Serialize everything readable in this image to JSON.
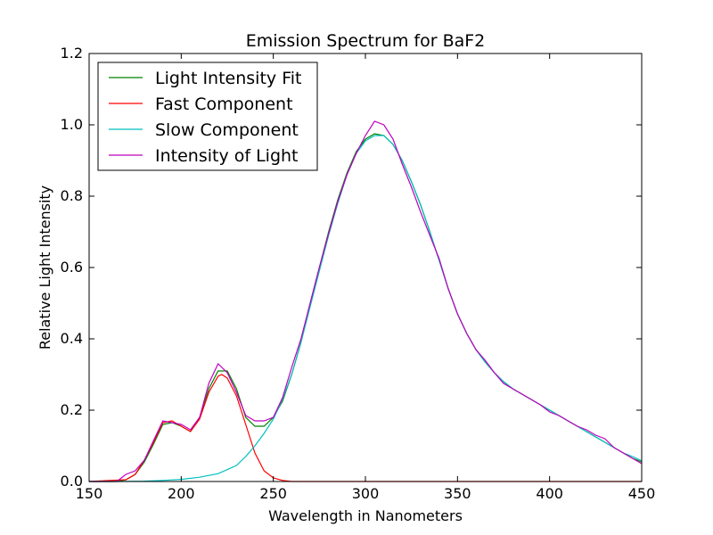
{
  "chart_data": {
    "type": "line",
    "title": "Emission Spectrum for BaF2",
    "xlabel": "Wavelength in Nanometers",
    "ylabel": "Relative Light Intensity",
    "xlim": [
      150,
      450
    ],
    "ylim": [
      0,
      1.2
    ],
    "xticks": [
      "150",
      "200",
      "250",
      "300",
      "350",
      "400",
      "450"
    ],
    "yticks": [
      "0.0",
      "0.2",
      "0.4",
      "0.6",
      "0.8",
      "1.0",
      "1.2"
    ],
    "grid": false,
    "legend_position": "top-left",
    "series": [
      {
        "name": "Light Intensity Fit",
        "color": "#008000",
        "points": [
          [
            150,
            0
          ],
          [
            165,
            0
          ],
          [
            170,
            0.005
          ],
          [
            175,
            0.02
          ],
          [
            180,
            0.055
          ],
          [
            185,
            0.105
          ],
          [
            190,
            0.16
          ],
          [
            195,
            0.165
          ],
          [
            200,
            0.155
          ],
          [
            205,
            0.14
          ],
          [
            210,
            0.18
          ],
          [
            215,
            0.26
          ],
          [
            220,
            0.31
          ],
          [
            225,
            0.31
          ],
          [
            230,
            0.26
          ],
          [
            235,
            0.18
          ],
          [
            240,
            0.155
          ],
          [
            245,
            0.155
          ],
          [
            250,
            0.18
          ],
          [
            255,
            0.225
          ],
          [
            260,
            0.3
          ],
          [
            265,
            0.39
          ],
          [
            270,
            0.5
          ],
          [
            275,
            0.6
          ],
          [
            280,
            0.7
          ],
          [
            285,
            0.79
          ],
          [
            290,
            0.865
          ],
          [
            295,
            0.925
          ],
          [
            300,
            0.96
          ],
          [
            305,
            0.975
          ],
          [
            310,
            0.97
          ],
          [
            315,
            0.945
          ],
          [
            320,
            0.9
          ],
          [
            325,
            0.84
          ],
          [
            330,
            0.775
          ],
          [
            335,
            0.7
          ],
          [
            340,
            0.62
          ],
          [
            345,
            0.54
          ],
          [
            350,
            0.47
          ],
          [
            355,
            0.415
          ],
          [
            360,
            0.37
          ],
          [
            365,
            0.335
          ],
          [
            370,
            0.305
          ],
          [
            375,
            0.28
          ],
          [
            380,
            0.26
          ],
          [
            385,
            0.245
          ],
          [
            390,
            0.23
          ],
          [
            395,
            0.215
          ],
          [
            400,
            0.2
          ],
          [
            405,
            0.185
          ],
          [
            410,
            0.17
          ],
          [
            415,
            0.155
          ],
          [
            420,
            0.14
          ],
          [
            425,
            0.125
          ],
          [
            430,
            0.11
          ],
          [
            435,
            0.095
          ],
          [
            440,
            0.08
          ],
          [
            445,
            0.065
          ],
          [
            450,
            0.055
          ]
        ]
      },
      {
        "name": "Fast Component",
        "color": "#ff0000",
        "points": [
          [
            150,
            0
          ],
          [
            170,
            0.005
          ],
          [
            175,
            0.02
          ],
          [
            180,
            0.06
          ],
          [
            185,
            0.11
          ],
          [
            190,
            0.165
          ],
          [
            195,
            0.17
          ],
          [
            200,
            0.155
          ],
          [
            205,
            0.14
          ],
          [
            210,
            0.175
          ],
          [
            215,
            0.25
          ],
          [
            220,
            0.295
          ],
          [
            222,
            0.3
          ],
          [
            225,
            0.29
          ],
          [
            230,
            0.24
          ],
          [
            235,
            0.16
          ],
          [
            240,
            0.08
          ],
          [
            245,
            0.03
          ],
          [
            250,
            0.01
          ],
          [
            255,
            0.003
          ],
          [
            260,
            0
          ],
          [
            450,
            0
          ]
        ]
      },
      {
        "name": "Slow Component",
        "color": "#00bfbf",
        "points": [
          [
            150,
            0
          ],
          [
            165,
            0
          ],
          [
            180,
            0.001
          ],
          [
            190,
            0.003
          ],
          [
            200,
            0.006
          ],
          [
            210,
            0.012
          ],
          [
            220,
            0.022
          ],
          [
            230,
            0.045
          ],
          [
            235,
            0.07
          ],
          [
            240,
            0.1
          ],
          [
            245,
            0.135
          ],
          [
            250,
            0.175
          ],
          [
            255,
            0.23
          ],
          [
            260,
            0.3
          ],
          [
            265,
            0.39
          ],
          [
            270,
            0.49
          ],
          [
            275,
            0.59
          ],
          [
            280,
            0.69
          ],
          [
            285,
            0.78
          ],
          [
            290,
            0.86
          ],
          [
            295,
            0.92
          ],
          [
            300,
            0.955
          ],
          [
            305,
            0.97
          ],
          [
            310,
            0.97
          ],
          [
            315,
            0.945
          ],
          [
            320,
            0.9
          ],
          [
            325,
            0.84
          ],
          [
            330,
            0.775
          ],
          [
            335,
            0.7
          ],
          [
            340,
            0.62
          ],
          [
            345,
            0.54
          ],
          [
            350,
            0.47
          ],
          [
            355,
            0.415
          ],
          [
            360,
            0.37
          ],
          [
            365,
            0.335
          ],
          [
            370,
            0.305
          ],
          [
            375,
            0.28
          ],
          [
            380,
            0.26
          ],
          [
            385,
            0.245
          ],
          [
            390,
            0.23
          ],
          [
            395,
            0.215
          ],
          [
            400,
            0.2
          ],
          [
            405,
            0.185
          ],
          [
            410,
            0.17
          ],
          [
            415,
            0.155
          ],
          [
            420,
            0.14
          ],
          [
            425,
            0.125
          ],
          [
            430,
            0.11
          ],
          [
            435,
            0.095
          ],
          [
            440,
            0.08
          ],
          [
            445,
            0.07
          ],
          [
            450,
            0.058
          ]
        ]
      },
      {
        "name": "Intensity of Light",
        "color": "#bf00bf",
        "points": [
          [
            150,
            0
          ],
          [
            165,
            0
          ],
          [
            170,
            0.02
          ],
          [
            175,
            0.03
          ],
          [
            180,
            0.06
          ],
          [
            185,
            0.115
          ],
          [
            190,
            0.17
          ],
          [
            195,
            0.165
          ],
          [
            200,
            0.16
          ],
          [
            205,
            0.145
          ],
          [
            210,
            0.18
          ],
          [
            215,
            0.275
          ],
          [
            220,
            0.33
          ],
          [
            225,
            0.305
          ],
          [
            230,
            0.25
          ],
          [
            235,
            0.185
          ],
          [
            240,
            0.17
          ],
          [
            245,
            0.17
          ],
          [
            250,
            0.18
          ],
          [
            255,
            0.235
          ],
          [
            260,
            0.32
          ],
          [
            265,
            0.4
          ],
          [
            270,
            0.5
          ],
          [
            275,
            0.6
          ],
          [
            280,
            0.695
          ],
          [
            285,
            0.785
          ],
          [
            290,
            0.86
          ],
          [
            295,
            0.92
          ],
          [
            300,
            0.97
          ],
          [
            305,
            1.01
          ],
          [
            310,
            1.0
          ],
          [
            315,
            0.96
          ],
          [
            320,
            0.89
          ],
          [
            325,
            0.825
          ],
          [
            330,
            0.755
          ],
          [
            335,
            0.69
          ],
          [
            340,
            0.625
          ],
          [
            345,
            0.54
          ],
          [
            350,
            0.47
          ],
          [
            355,
            0.415
          ],
          [
            360,
            0.37
          ],
          [
            365,
            0.34
          ],
          [
            370,
            0.305
          ],
          [
            375,
            0.275
          ],
          [
            380,
            0.26
          ],
          [
            385,
            0.245
          ],
          [
            390,
            0.23
          ],
          [
            395,
            0.215
          ],
          [
            400,
            0.195
          ],
          [
            405,
            0.185
          ],
          [
            410,
            0.17
          ],
          [
            415,
            0.155
          ],
          [
            420,
            0.145
          ],
          [
            425,
            0.13
          ],
          [
            430,
            0.12
          ],
          [
            435,
            0.095
          ],
          [
            440,
            0.08
          ],
          [
            445,
            0.065
          ],
          [
            450,
            0.05
          ]
        ]
      }
    ]
  }
}
